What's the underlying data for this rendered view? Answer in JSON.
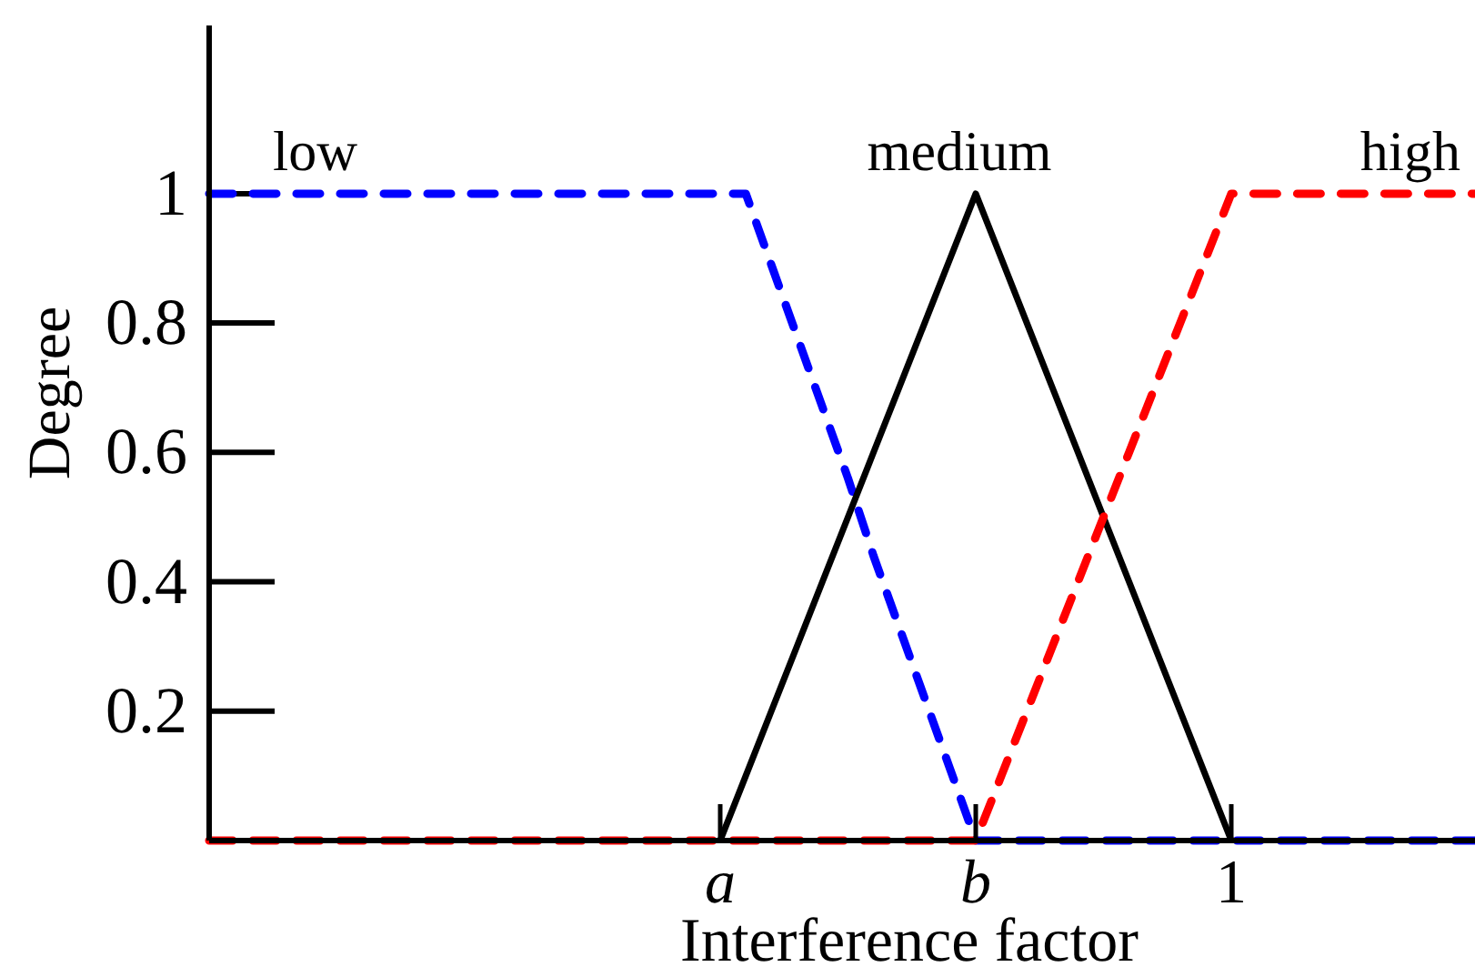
{
  "chart_data": {
    "type": "line",
    "xlabel": "Interference factor",
    "ylabel": "Degree",
    "categories": [
      null,
      null,
      null,
      null,
      null,
      null,
      null,
      null,
      null,
      null,
      null,
      null,
      null,
      null,
      null,
      null,
      null,
      null,
      null,
      null,
      "a",
      null,
      null,
      null,
      null,
      null,
      null,
      null,
      null,
      null,
      "b",
      null,
      null,
      null,
      null,
      null,
      null,
      null,
      null,
      null,
      "1",
      null,
      null,
      null,
      null,
      null,
      null,
      null,
      null,
      null,
      null
    ],
    "ylim": [
      0,
      1.26
    ],
    "yticks": [
      0.2,
      0.4,
      0.6,
      0.8,
      1
    ],
    "series": [
      {
        "name": "low",
        "color": "#0000ff",
        "line_style": "dashed",
        "values": [
          1,
          1,
          1,
          1,
          1,
          1,
          1,
          1,
          1,
          1,
          1,
          1,
          1,
          1,
          1,
          1,
          1,
          1,
          1,
          1,
          1,
          1,
          0.89,
          0.78,
          0.67,
          0.56,
          0.44,
          0.33,
          0.22,
          0.11,
          0,
          0,
          0,
          0,
          0,
          0,
          0,
          0,
          0,
          0,
          0,
          0,
          0,
          0,
          0,
          0,
          0,
          0,
          0,
          0,
          0
        ]
      },
      {
        "name": "medium",
        "color": "#000000",
        "line_style": "solid",
        "values": [
          null,
          null,
          null,
          null,
          null,
          null,
          null,
          null,
          null,
          null,
          null,
          null,
          null,
          null,
          null,
          null,
          null,
          null,
          null,
          null,
          0,
          0.1,
          0.2,
          0.3,
          0.4,
          0.5,
          0.6,
          0.7,
          0.8,
          0.9,
          1,
          0.9,
          0.8,
          0.7,
          0.6,
          0.5,
          0.4,
          0.3,
          0.2,
          0.1,
          0,
          null,
          null,
          null,
          null,
          null,
          null,
          null,
          null,
          null,
          null
        ]
      },
      {
        "name": "high",
        "color": "#ff0000",
        "line_style": "dashed",
        "values": [
          0,
          0,
          0,
          0,
          0,
          0,
          0,
          0,
          0,
          0,
          0,
          0,
          0,
          0,
          0,
          0,
          0,
          0,
          0,
          0,
          0,
          0,
          0,
          0,
          0,
          0,
          0,
          0,
          0,
          0,
          0,
          0.1,
          0.2,
          0.3,
          0.4,
          0.5,
          0.6,
          0.7,
          0.8,
          0.9,
          1,
          1,
          1,
          1,
          1,
          1,
          1,
          1,
          1,
          1,
          1
        ]
      }
    ]
  }
}
